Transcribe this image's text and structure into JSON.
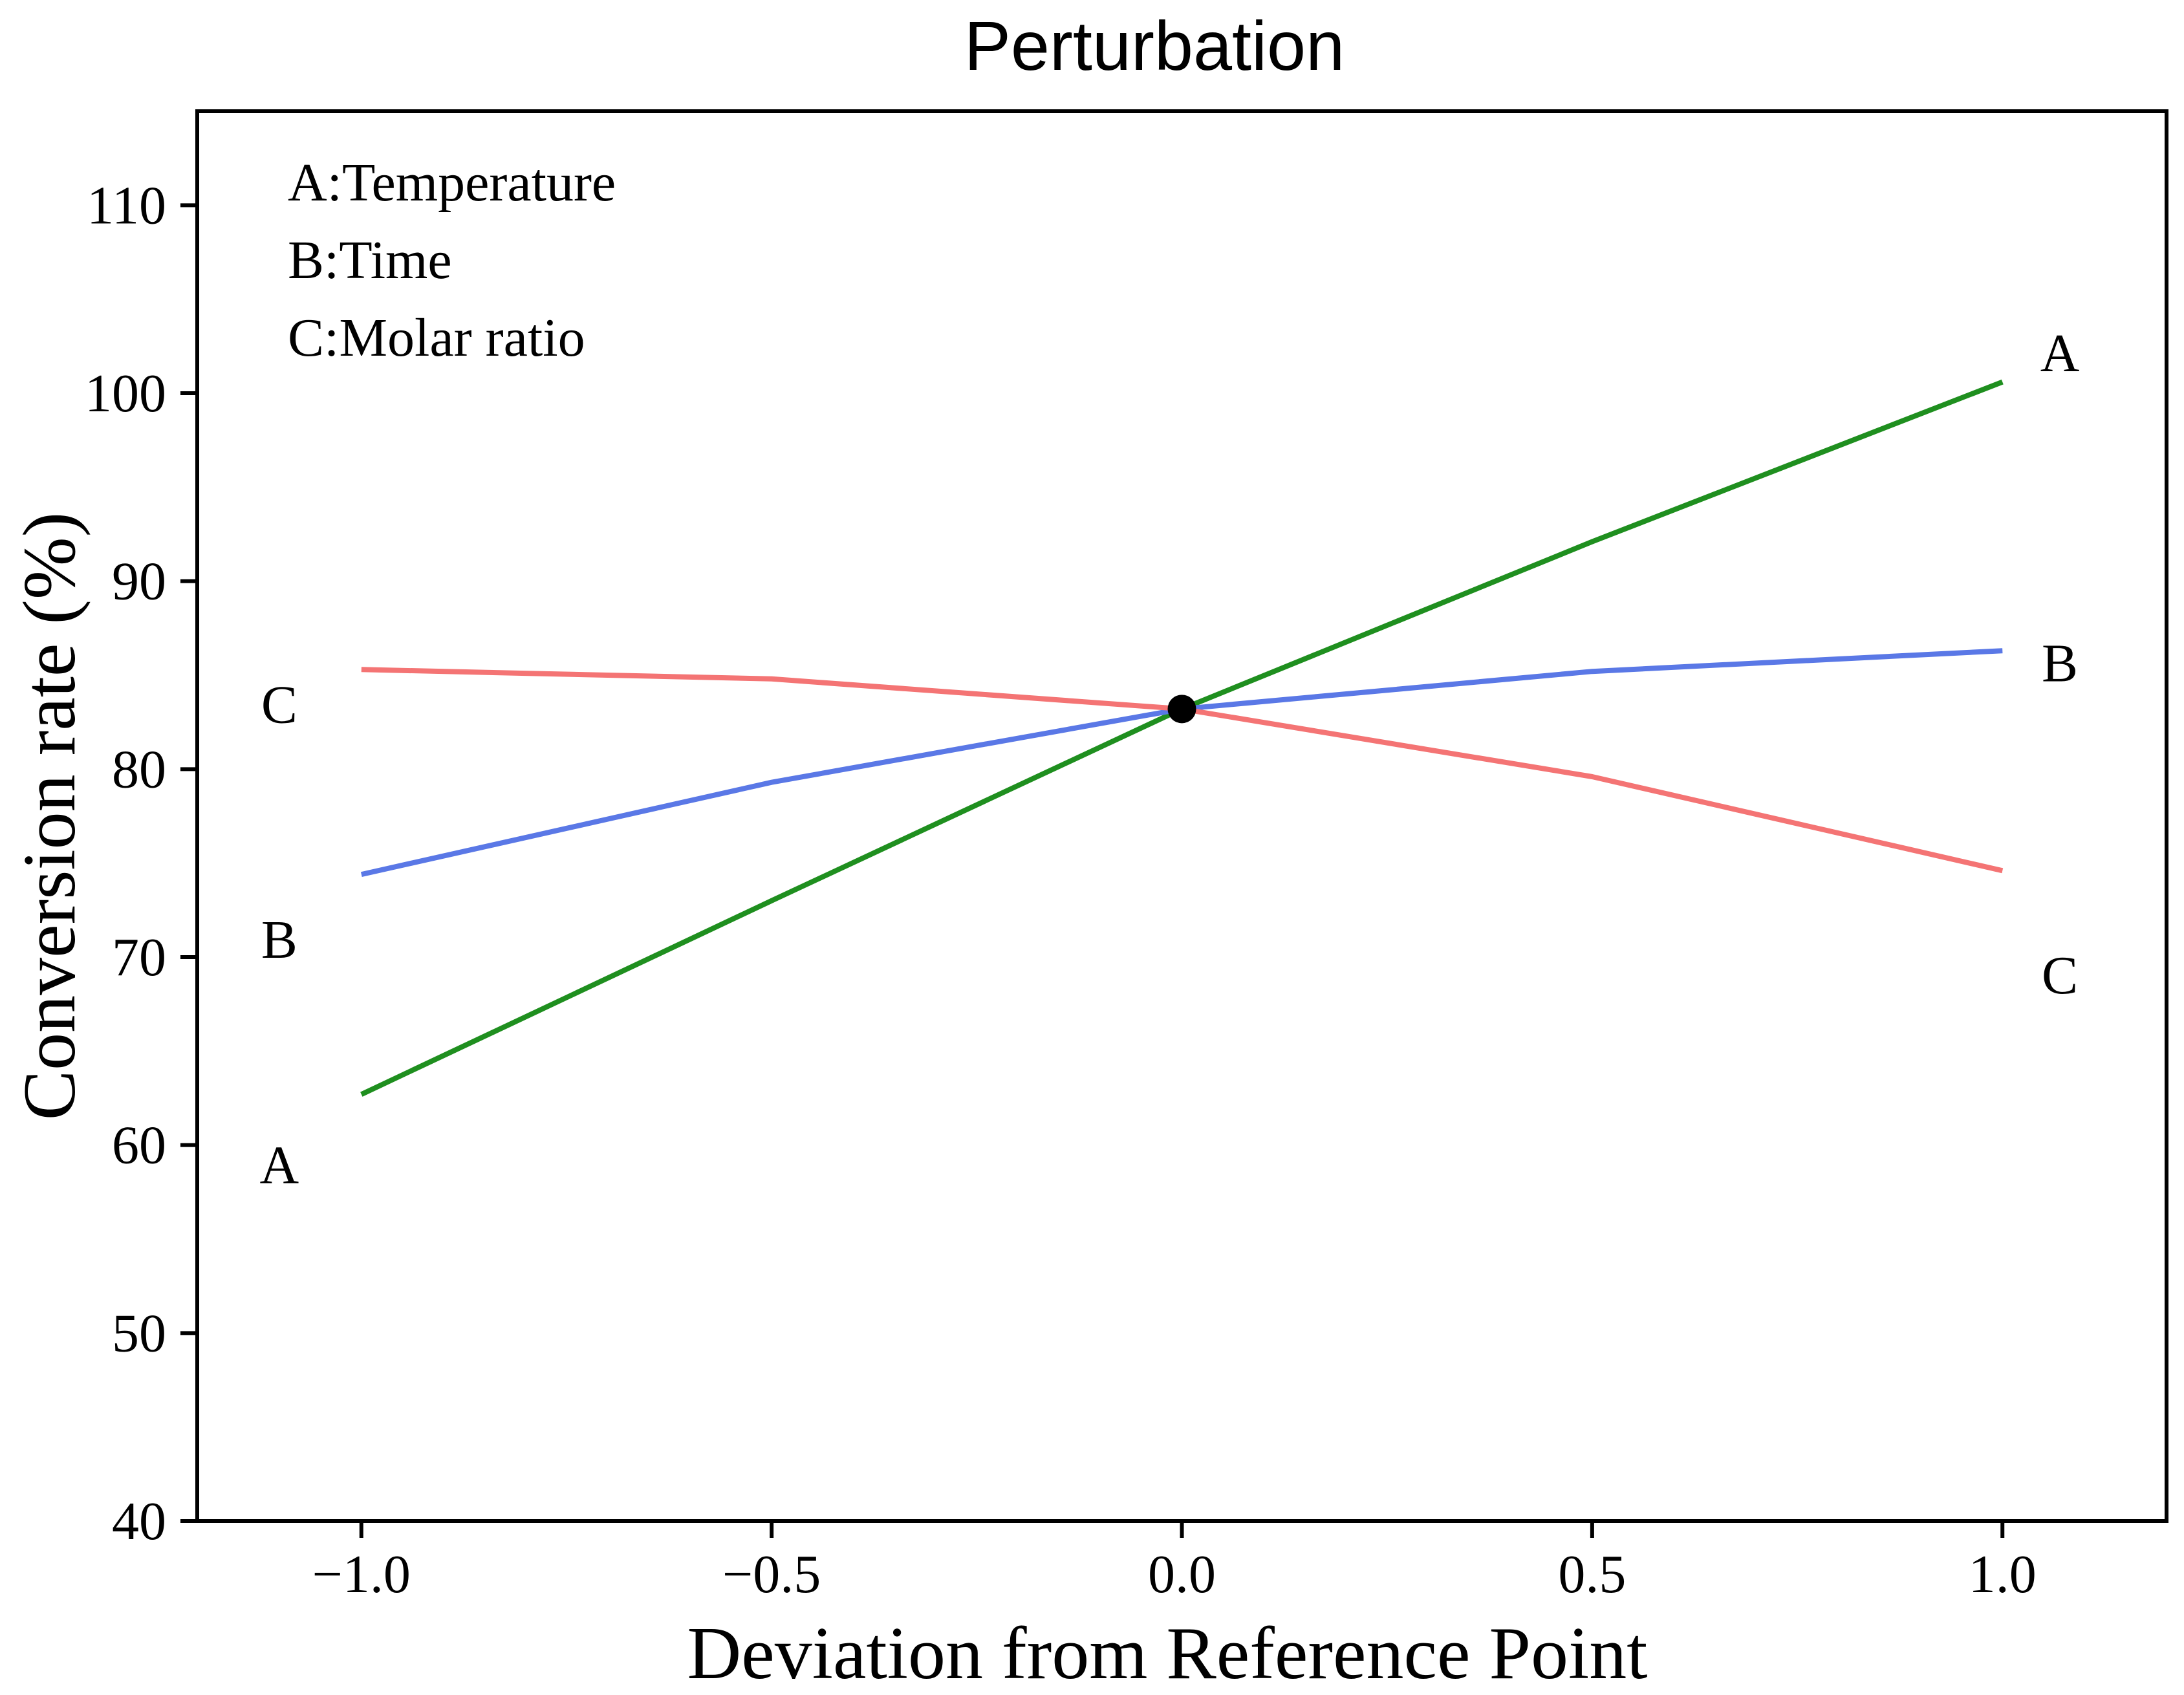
{
  "chart_data": {
    "type": "line",
    "title": "Perturbation",
    "xlabel": "Deviation from Reference Point",
    "ylabel": "Conversion rate (%)",
    "xlim": [
      -1.2,
      1.2
    ],
    "ylim": [
      40,
      115
    ],
    "xticks": [
      -1.0,
      -0.5,
      0.0,
      0.5,
      1.0
    ],
    "xtick_labels": [
      "−1.0",
      "−0.5",
      "0.0",
      "0.5",
      "1.0"
    ],
    "yticks": [
      40,
      50,
      60,
      70,
      80,
      90,
      100,
      110
    ],
    "ytick_labels": [
      "40",
      "50",
      "60",
      "70",
      "80",
      "90",
      "100",
      "110"
    ],
    "grid": false,
    "legend_text": [
      "A:Temperature",
      "B:Time",
      "C:Molar ratio"
    ],
    "legend_placement": "top-left",
    "reference_point": {
      "x": 0.0,
      "y": 83.2
    },
    "series": [
      {
        "name": "A",
        "color": "#1f8f1f",
        "x": [
          -1.0,
          -0.5,
          0.0,
          0.5,
          1.0
        ],
        "y": [
          62.7,
          73.0,
          83.2,
          92.1,
          100.6
        ]
      },
      {
        "name": "B",
        "color": "#5a78e6",
        "x": [
          -1.0,
          -0.5,
          0.0,
          0.5,
          1.0
        ],
        "y": [
          74.4,
          79.3,
          83.2,
          85.2,
          86.3
        ]
      },
      {
        "name": "C",
        "color": "#f47474",
        "x": [
          -1.0,
          -0.5,
          0.0,
          0.5,
          1.0
        ],
        "y": [
          85.3,
          84.8,
          83.2,
          79.6,
          74.6
        ]
      }
    ],
    "end_labels": [
      {
        "text": "A",
        "x": -1.1,
        "y": 59.0
      },
      {
        "text": "B",
        "x": -1.1,
        "y": 71.0
      },
      {
        "text": "C",
        "x": -1.1,
        "y": 83.5
      },
      {
        "text": "A",
        "x": 1.07,
        "y": 102.2
      },
      {
        "text": "B",
        "x": 1.07,
        "y": 85.7
      },
      {
        "text": "C",
        "x": 1.07,
        "y": 69.1
      }
    ]
  }
}
